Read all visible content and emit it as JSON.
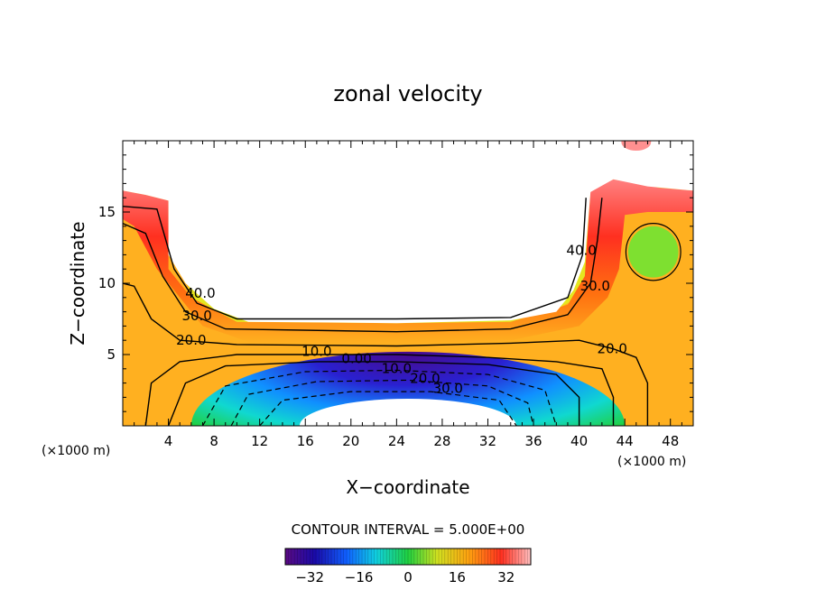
{
  "chart_data": {
    "type": "contour",
    "title": "zonal velocity",
    "xlabel": "X−coordinate",
    "ylabel": "Z−coordinate",
    "x_unit_label": "(×1000 m)",
    "z_unit_label": "(×1000 m)",
    "xlim": [
      0,
      50
    ],
    "ylim": [
      0,
      20
    ],
    "x_ticks": [
      4,
      8,
      12,
      16,
      20,
      24,
      28,
      32,
      36,
      40,
      44,
      48
    ],
    "y_ticks": [
      5,
      10,
      15
    ],
    "contour_interval_label": "CONTOUR INTERVAL = 5.000E+00",
    "contour_labels": [
      {
        "text": "40.0",
        "x": 6.8,
        "z": 9.0
      },
      {
        "text": "30.0",
        "x": 6.5,
        "z": 7.4
      },
      {
        "text": "20.0",
        "x": 6.0,
        "z": 5.7
      },
      {
        "text": "10.0",
        "x": 17.0,
        "z": 4.9
      },
      {
        "text": "0.00",
        "x": 20.5,
        "z": 4.4
      },
      {
        "text": "10.0",
        "x": 24.0,
        "z": 3.7
      },
      {
        "text": "20.0",
        "x": 26.5,
        "z": 3.0
      },
      {
        "text": "30.0",
        "x": 28.5,
        "z": 2.3
      },
      {
        "text": "40.0",
        "x": 40.2,
        "z": 12.0
      },
      {
        "text": "30.0",
        "x": 41.4,
        "z": 9.5
      },
      {
        "text": "20.0",
        "x": 42.9,
        "z": 5.1
      }
    ],
    "colorbar": {
      "min": -40,
      "max": 40,
      "ticks": [
        -32,
        -16,
        0,
        16,
        32
      ],
      "tick_labels": [
        "−32",
        "−16",
        "0",
        "16",
        "32"
      ]
    }
  }
}
